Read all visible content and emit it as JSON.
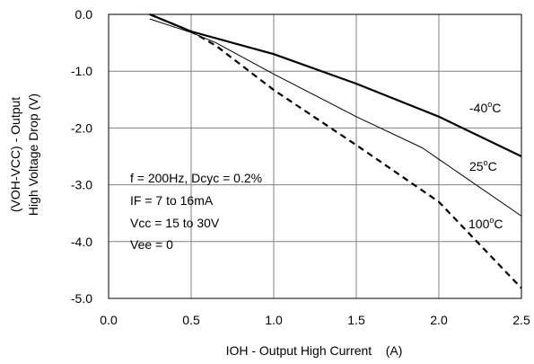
{
  "chart_data": {
    "type": "line",
    "xlabel": "IOH - Output High Current    (A)",
    "ylabel_line1": "(VOH-VCC) - Output",
    "ylabel_line2": "High Voltage Drop (V)",
    "xlim": [
      0.0,
      2.5
    ],
    "ylim": [
      -5.0,
      0.0
    ],
    "x_ticks": [
      0.0,
      0.5,
      1.0,
      1.5,
      2.0,
      2.5
    ],
    "x_tick_labels": [
      "0.0",
      "0.5",
      "1.0",
      "1.5",
      "2.0",
      "2.5"
    ],
    "y_ticks": [
      0.0,
      -1.0,
      -2.0,
      -3.0,
      -4.0,
      -5.0
    ],
    "y_tick_labels": [
      "0.0",
      "-1.0",
      "-2.0",
      "-3.0",
      "-4.0",
      "-5.0"
    ],
    "grid": true,
    "annotations": [
      "f = 200Hz, Dcyc = 0.2%",
      "IF = 7 to 16mA",
      "Vcc = 15 to 30V",
      "Vee = 0"
    ],
    "series": [
      {
        "label_text": "-40",
        "label_sup": "o",
        "label_unit": "C",
        "style": "thick-solid",
        "x": [
          0.25,
          0.5,
          1.0,
          1.5,
          2.0,
          2.5
        ],
        "y": [
          0.0,
          -0.3,
          -0.7,
          -1.22,
          -1.8,
          -2.5
        ]
      },
      {
        "label_text": "25",
        "label_sup": "o",
        "label_unit": "C",
        "style": "thin-solid",
        "x": [
          0.25,
          0.5,
          0.65,
          1.0,
          1.5,
          1.9,
          2.0,
          2.5
        ],
        "y": [
          -0.08,
          -0.32,
          -0.5,
          -1.05,
          -1.8,
          -2.35,
          -2.55,
          -3.55
        ]
      },
      {
        "label_text": "100",
        "label_sup": "o",
        "label_unit": "C",
        "style": "thick-dashed",
        "x": [
          0.25,
          0.5,
          0.65,
          1.0,
          1.5,
          2.0,
          2.5
        ],
        "y": [
          0.0,
          -0.3,
          -0.55,
          -1.33,
          -2.3,
          -3.3,
          -4.82
        ]
      }
    ]
  }
}
